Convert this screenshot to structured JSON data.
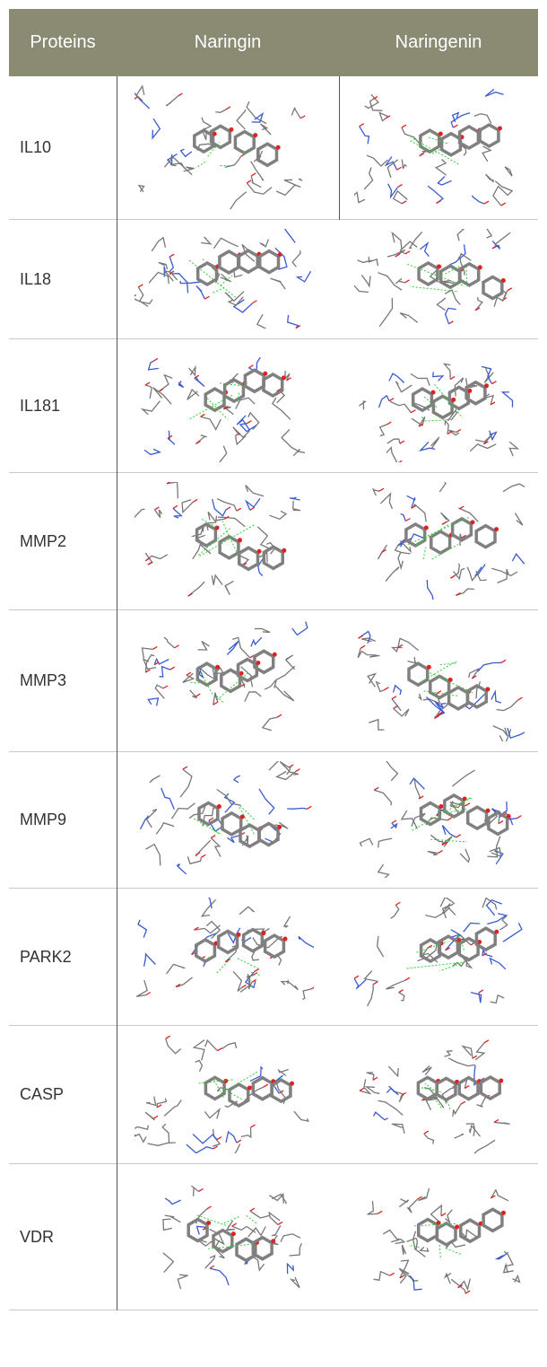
{
  "table": {
    "header": [
      "Proteins",
      "Naringin",
      "Naringenin"
    ],
    "rows": [
      "IL10",
      "IL18",
      "IL181",
      "MMP2",
      "MMP3",
      "MMP9",
      "PARK2",
      "CASP",
      "VDR"
    ]
  }
}
